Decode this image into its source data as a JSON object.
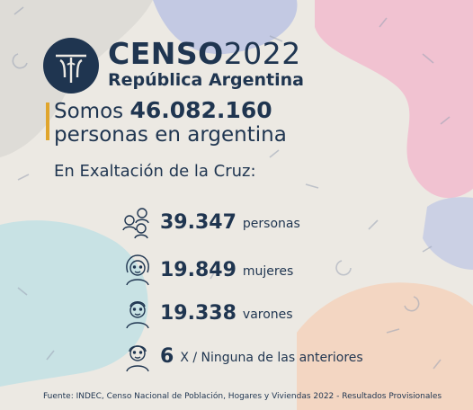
{
  "brand": {
    "name": "CENSO",
    "year": "2022",
    "country": "República Argentina"
  },
  "total": {
    "prefix": "Somos",
    "value": "46.082.160",
    "suffix": "personas en argentina"
  },
  "locality": "En Exaltación de la Cruz:",
  "stats": [
    {
      "value": "39.347",
      "label": "personas",
      "icon": "group-people-icon"
    },
    {
      "value": "19.849",
      "label": "mujeres",
      "icon": "woman-face-icon"
    },
    {
      "value": "19.338",
      "label": "varones",
      "icon": "man-face-icon"
    },
    {
      "value": "6",
      "label": "X / Ninguna de las anteriores",
      "icon": "person-face-icon"
    }
  ],
  "source": "Fuente: INDEC, Censo Nacional de Población, Hogares y Viviendas 2022 - Resultados Provisionales",
  "colors": {
    "navy": "#1f3550",
    "accent": "#e0a52c",
    "pink": "#f1c2d1",
    "blue": "#c3c9e3",
    "teal": "#c8e2e4",
    "peach": "#f3d6c2"
  }
}
